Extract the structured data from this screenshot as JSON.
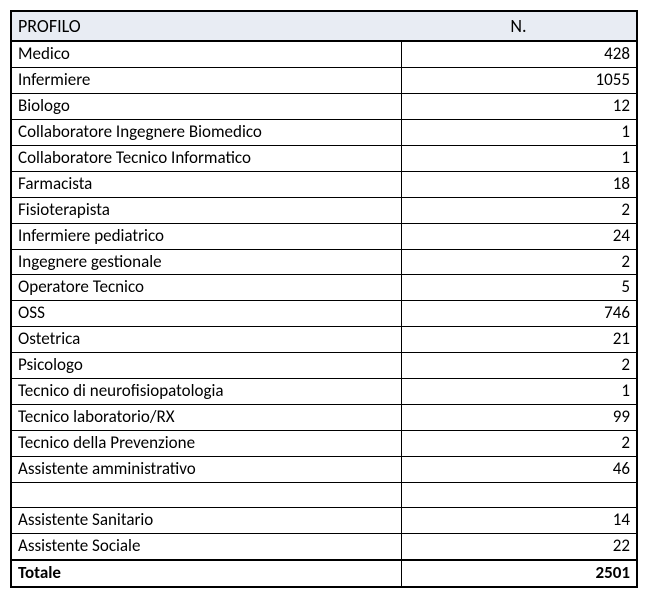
{
  "table": {
    "header_bg": "#e8ecf3",
    "columns": [
      "PROFILO",
      "N."
    ],
    "rows": [
      {
        "label": "Medico",
        "value": 428
      },
      {
        "label": "Infermiere",
        "value": 1055
      },
      {
        "label": "Biologo",
        "value": 12
      },
      {
        "label": "Collaboratore Ingegnere Biomedico",
        "value": 1
      },
      {
        "label": "Collaboratore Tecnico  Informatico",
        "value": 1
      },
      {
        "label": "Farmacista",
        "value": 18
      },
      {
        "label": "Fisioterapista",
        "value": 2
      },
      {
        "label": "Infermiere pediatrico",
        "value": 24
      },
      {
        "label": "Ingegnere gestionale",
        "value": 2
      },
      {
        "label": "Operatore Tecnico",
        "value": 5
      },
      {
        "label": "OSS",
        "value": 746
      },
      {
        "label": "Ostetrica",
        "value": 21
      },
      {
        "label": "Psicologo",
        "value": 2
      },
      {
        "label": "Tecnico di neurofisiopatologia",
        "value": 1
      },
      {
        "label": "Tecnico laboratorio/RX",
        "value": 99
      },
      {
        "label": "Tecnico della  Prevenzione",
        "value": 2
      },
      {
        "label": "Assistente amministrativo",
        "value": 46
      },
      {
        "blank": true
      },
      {
        "label": "Assistente Sanitario",
        "value": 14
      },
      {
        "label": "Assistente Sociale",
        "value": 22
      }
    ],
    "total": {
      "label": "Totale",
      "value": 2501
    }
  }
}
